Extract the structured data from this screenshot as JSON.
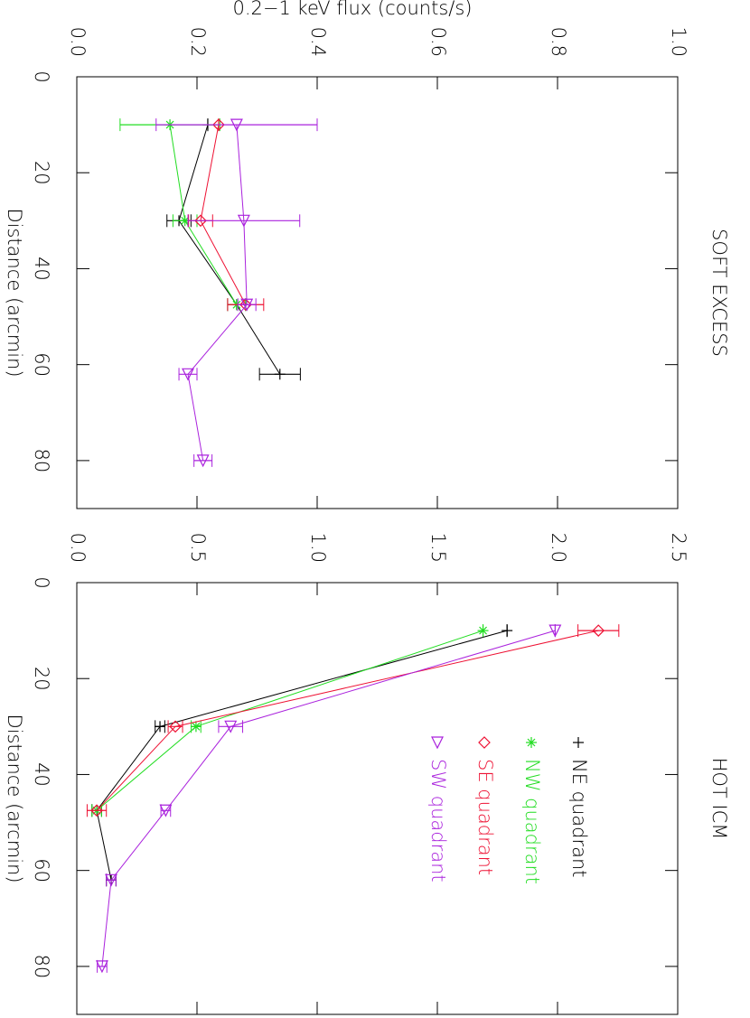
{
  "chart_data": [
    {
      "type": "line",
      "title": "SOFT EXCESS",
      "xlabel": "Distance (arcmin)",
      "ylabel": "0.2−1 keV flux (counts/s)",
      "xlim": [
        0,
        90
      ],
      "xticks": [
        0,
        20,
        40,
        60,
        80
      ],
      "ylim": [
        0,
        1
      ],
      "yticks": [
        {
          "value": 0,
          "label": "0.0"
        },
        0.2,
        0.4,
        0.6,
        0.8,
        {
          "value": 1,
          "label": "1.0"
        }
      ],
      "series": [
        {
          "name": "NE quadrant",
          "color": "#000000",
          "marker": "plus",
          "x": [
            10,
            30,
            47.5,
            62
          ],
          "values": [
            0.218,
            0.17,
            0.266,
            0.338
          ],
          "errors": [
            0,
            0.02,
            0.015,
            0.034
          ]
        },
        {
          "name": "NW quadrant",
          "color": "#22dd22",
          "marker": "asterisk",
          "x": [
            10,
            30,
            47.5
          ],
          "values": [
            0.155,
            0.18,
            0.266
          ],
          "errors": [
            0.083,
            0.02,
            0.015
          ]
        },
        {
          "name": "SE quadrant",
          "color": "#ee1133",
          "marker": "diamond",
          "x": [
            10,
            30,
            47.5
          ],
          "values": [
            0.236,
            0.206,
            0.281
          ],
          "errors": [
            0,
            0.02,
            0.03
          ]
        },
        {
          "name": "SW quadrant",
          "color": "#aa22dd",
          "marker": "triangle",
          "x": [
            10,
            30,
            47.5,
            62,
            80
          ],
          "values": [
            0.266,
            0.278,
            0.283,
            0.185,
            0.21
          ],
          "errors": [
            0.134,
            0.093,
            0.015,
            0.015,
            0.015
          ]
        }
      ]
    },
    {
      "type": "line",
      "title": "HOT ICM",
      "xlabel": "Distance (arcmin)",
      "legend": "upper right",
      "xlim": [
        0,
        90
      ],
      "xticks": [
        0,
        20,
        40,
        60,
        80
      ],
      "ylim": [
        0,
        2.5
      ],
      "yticks": [
        {
          "value": 0,
          "label": "0.0"
        },
        0.5,
        {
          "value": 1,
          "label": "1.0"
        },
        1.5,
        {
          "value": 2,
          "label": "2.0"
        },
        2.5
      ],
      "series": [
        {
          "name": "NE quadrant",
          "color": "#000000",
          "marker": "plus",
          "x": [
            10,
            30,
            47.5,
            62
          ],
          "values": [
            1.79,
            0.346,
            0.083,
            0.143
          ],
          "errors": [
            0,
            0.02,
            0.02,
            0.02
          ]
        },
        {
          "name": "NW quadrant",
          "color": "#22dd22",
          "marker": "asterisk",
          "x": [
            10,
            30,
            47.5
          ],
          "values": [
            1.69,
            0.496,
            0.083
          ],
          "errors": [
            0,
            0.02,
            0.02
          ]
        },
        {
          "name": "SE quadrant",
          "color": "#ee1133",
          "marker": "diamond",
          "x": [
            10,
            30,
            47.5
          ],
          "values": [
            2.17,
            0.41,
            0.083
          ],
          "errors": [
            0.085,
            0.03,
            0.04
          ]
        },
        {
          "name": "SW quadrant",
          "color": "#aa22dd",
          "marker": "triangle",
          "x": [
            10,
            30,
            47.5,
            62,
            80
          ],
          "values": [
            1.99,
            0.64,
            0.37,
            0.143,
            0.105
          ],
          "errors": [
            0,
            0.05,
            0.02,
            0.02,
            0.02
          ]
        }
      ]
    }
  ]
}
